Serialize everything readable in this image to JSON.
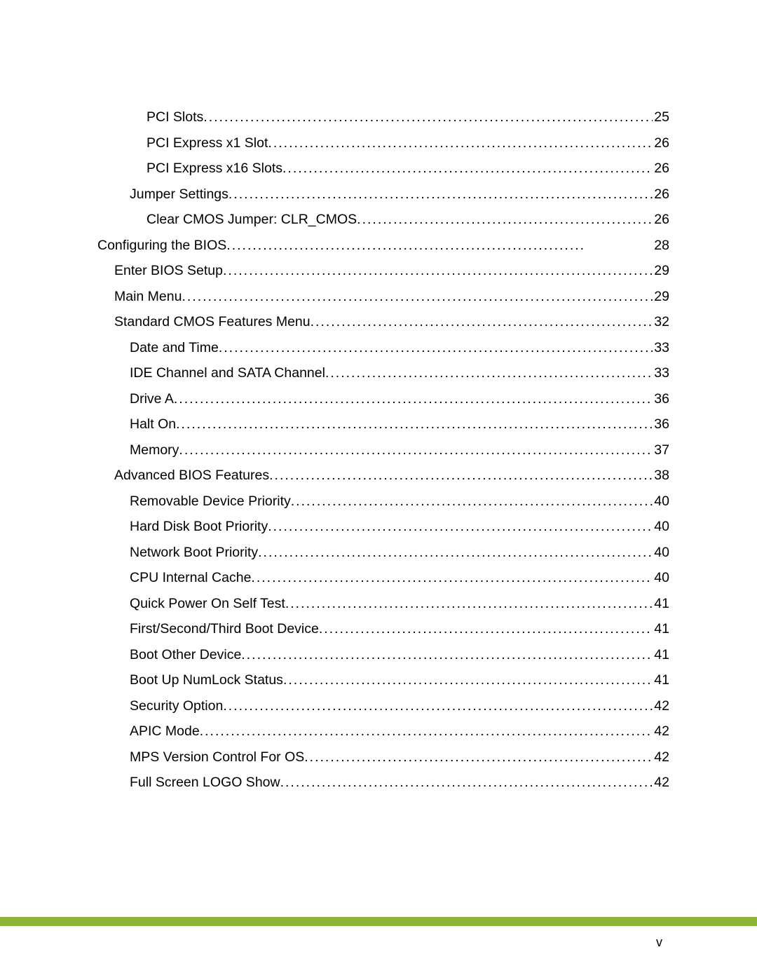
{
  "footer": {
    "page_number": "v",
    "bar_color": "#8fb538"
  },
  "toc": {
    "entries": [
      {
        "label": "PCI Slots",
        "page": "25",
        "indent": 3
      },
      {
        "label": "PCI Express x1 Slot",
        "page": "26",
        "indent": 3
      },
      {
        "label": "PCI Express x16 Slots",
        "page": "26",
        "indent": 3
      },
      {
        "label": "Jumper Settings",
        "page": "26",
        "indent": 2
      },
      {
        "label": "Clear CMOS Jumper: CLR_CMOS",
        "page": "26",
        "indent": 3
      },
      {
        "label": "Configuring the BIOS",
        "page": "28",
        "indent": 0,
        "heading": true
      },
      {
        "label": "Enter BIOS Setup",
        "page": "29",
        "indent": 1
      },
      {
        "label": "Main Menu",
        "page": "29",
        "indent": 1
      },
      {
        "label": "Standard CMOS Features Menu",
        "page": "32",
        "indent": 1
      },
      {
        "label": "Date and Time",
        "page": "33",
        "indent": 2
      },
      {
        "label": "IDE Channel and SATA Channel",
        "page": "33",
        "indent": 2
      },
      {
        "label": "Drive A",
        "page": "36",
        "indent": 2
      },
      {
        "label": "Halt On",
        "page": "36",
        "indent": 2
      },
      {
        "label": "Memory",
        "page": "37",
        "indent": 2
      },
      {
        "label": "Advanced BIOS Features",
        "page": "38",
        "indent": 1
      },
      {
        "label": "Removable Device Priority",
        "page": "40",
        "indent": 2
      },
      {
        "label": "Hard Disk Boot Priority",
        "page": "40",
        "indent": 2
      },
      {
        "label": "Network Boot Priority",
        "page": "40",
        "indent": 2
      },
      {
        "label": "CPU Internal Cache",
        "page": "40",
        "indent": 2
      },
      {
        "label": "Quick Power On Self Test",
        "page": "41",
        "indent": 2
      },
      {
        "label": "First/Second/Third Boot Device",
        "page": "41",
        "indent": 2
      },
      {
        "label": "Boot Other Device",
        "page": "41",
        "indent": 2
      },
      {
        "label": "Boot Up NumLock Status",
        "page": "41",
        "indent": 2
      },
      {
        "label": "Security Option",
        "page": "42",
        "indent": 2
      },
      {
        "label": "APIC Mode",
        "page": "42",
        "indent": 2
      },
      {
        "label": "MPS Version Control For OS",
        "page": "42",
        "indent": 2
      },
      {
        "label": "Full Screen LOGO Show",
        "page": "42",
        "indent": 2
      }
    ]
  }
}
